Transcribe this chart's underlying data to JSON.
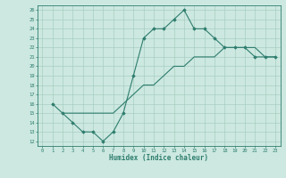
{
  "title": "",
  "xlabel": "Humidex (Indice chaleur)",
  "ylabel": "",
  "xlim": [
    -0.5,
    23.5
  ],
  "ylim": [
    11.5,
    26.5
  ],
  "xticks": [
    0,
    1,
    2,
    3,
    4,
    5,
    6,
    7,
    8,
    9,
    10,
    11,
    12,
    13,
    14,
    15,
    16,
    17,
    18,
    19,
    20,
    21,
    22,
    23
  ],
  "yticks": [
    12,
    13,
    14,
    15,
    16,
    17,
    18,
    19,
    20,
    21,
    22,
    23,
    24,
    25,
    26
  ],
  "line_color": "#2e7d6e",
  "bg_color": "#cce8e0",
  "grid_color": "#a0c8bc",
  "line1_x": [
    1,
    2,
    3,
    4,
    5,
    6,
    7,
    8,
    9,
    10,
    11,
    12,
    13,
    14,
    15,
    16,
    17,
    18,
    19,
    20,
    21,
    22,
    23
  ],
  "line1_y": [
    16,
    15,
    14,
    13,
    13,
    12,
    13,
    15,
    19,
    23,
    24,
    24,
    25,
    26,
    24,
    24,
    23,
    22,
    22,
    22,
    21,
    21,
    21
  ],
  "line2_x": [
    2,
    3,
    4,
    5,
    6,
    7,
    8,
    9,
    10,
    11,
    12,
    13,
    14,
    15,
    16,
    17,
    18,
    19,
    20,
    21,
    22,
    23
  ],
  "line2_y": [
    15,
    15,
    15,
    15,
    15,
    15,
    16,
    17,
    18,
    18,
    19,
    20,
    20,
    21,
    21,
    21,
    22,
    22,
    22,
    22,
    21,
    21
  ]
}
